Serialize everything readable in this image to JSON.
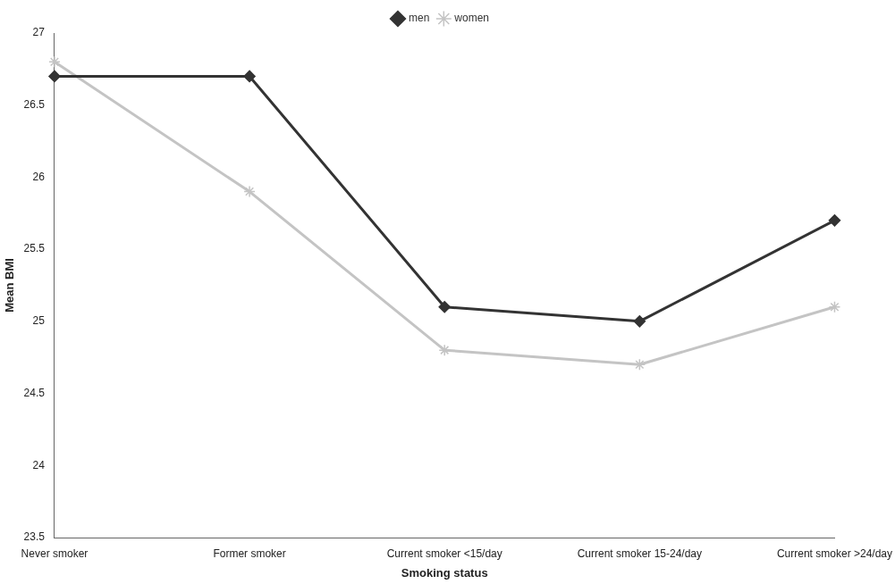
{
  "chart_data": {
    "type": "line",
    "xlabel": "Smoking status",
    "ylabel": "Mean BMI",
    "categories": [
      "Never smoker",
      "Former smoker",
      "Current smoker <15/day",
      "Current smoker 15-24/day",
      "Current smoker >24/day"
    ],
    "series": [
      {
        "name": "men",
        "color": "#333333",
        "marker": "diamond",
        "values": [
          26.7,
          26.7,
          25.1,
          25.0,
          25.7
        ]
      },
      {
        "name": "women",
        "color": "#c4c4c4",
        "marker": "cross",
        "values": [
          26.8,
          25.9,
          24.8,
          24.7,
          25.1
        ]
      }
    ],
    "ylim": [
      23.5,
      27
    ],
    "yticks": [
      23.5,
      24,
      24.5,
      25,
      25.5,
      26,
      26.5,
      27
    ],
    "grid": false,
    "legend": "top",
    "line_style": "solid"
  }
}
